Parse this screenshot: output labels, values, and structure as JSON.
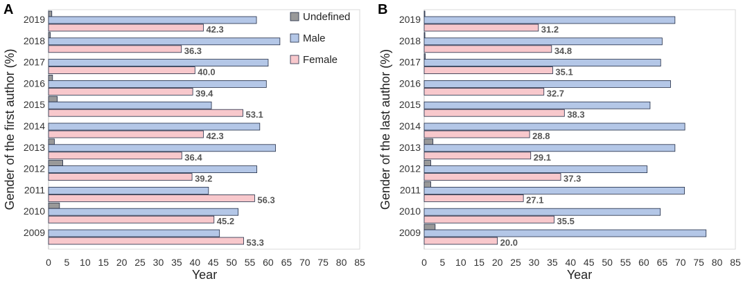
{
  "chart_data": [
    {
      "panel_label": "A",
      "type": "bar",
      "orientation": "horizontal",
      "categories": [
        "2019",
        "2018",
        "2017",
        "2016",
        "2015",
        "2014",
        "2013",
        "2012",
        "2011",
        "2010",
        "2009"
      ],
      "series": [
        {
          "name": "Undefined",
          "color": "#999999",
          "values": [
            0.9,
            0.5,
            0.0,
            1.1,
            2.4,
            0.0,
            1.6,
            3.9,
            0.0,
            3.0,
            0.0
          ]
        },
        {
          "name": "Male",
          "color": "#b4c7e7",
          "values": [
            56.8,
            63.2,
            60.0,
            59.5,
            44.5,
            57.7,
            62.0,
            56.9,
            43.7,
            51.8,
            46.7
          ]
        },
        {
          "name": "Female",
          "color": "#f8c8cc",
          "values": [
            42.3,
            36.3,
            40.0,
            39.4,
            53.1,
            42.3,
            36.4,
            39.2,
            56.3,
            45.2,
            53.3
          ]
        }
      ],
      "data_labels": [
        "42.3",
        "36.3",
        "40.0",
        "39.4",
        "53.1",
        "42.3",
        "36.4",
        "39.2",
        "56.3",
        "45.2",
        "53.3"
      ],
      "title": "",
      "xlabel": "Year",
      "ylabel": "Gender of the first author (%)",
      "xlim": [
        0,
        85
      ],
      "xticks": [
        "0",
        "5",
        "10",
        "15",
        "20",
        "25",
        "30",
        "35",
        "40",
        "45",
        "50",
        "55",
        "60",
        "65",
        "70",
        "75",
        "80",
        "85"
      ],
      "legend": {
        "position": "top-right",
        "entries": [
          "Undefined",
          "Male",
          "Female"
        ]
      }
    },
    {
      "panel_label": "B",
      "type": "bar",
      "orientation": "horizontal",
      "categories": [
        "2019",
        "2018",
        "2017",
        "2016",
        "2015",
        "2014",
        "2013",
        "2012",
        "2011",
        "2010",
        "2009"
      ],
      "series": [
        {
          "name": "Undefined",
          "color": "#999999",
          "values": [
            0.2,
            0.2,
            0.3,
            0.0,
            0.0,
            0.0,
            2.4,
            1.8,
            1.8,
            0.0,
            3.0
          ]
        },
        {
          "name": "Male",
          "color": "#b4c7e7",
          "values": [
            68.5,
            65.0,
            64.6,
            67.3,
            61.7,
            71.2,
            68.5,
            60.9,
            71.1,
            64.5,
            77.0
          ]
        },
        {
          "name": "Female",
          "color": "#f8c8cc",
          "values": [
            31.2,
            34.8,
            35.1,
            32.7,
            38.3,
            28.8,
            29.1,
            37.3,
            27.1,
            35.5,
            20.0
          ]
        }
      ],
      "data_labels": [
        "31.2",
        "34.8",
        "35.1",
        "32.7",
        "38.3",
        "28.8",
        "29.1",
        "37.3",
        "27.1",
        "35.5",
        "20.0"
      ],
      "title": "",
      "xlabel": "Year",
      "ylabel": "Gender of the last author (%)",
      "xlim": [
        0,
        85
      ],
      "xticks": [
        "0",
        "5",
        "10",
        "15",
        "20",
        "25",
        "30",
        "35",
        "40",
        "45",
        "50",
        "55",
        "60",
        "65",
        "70",
        "75",
        "80",
        "85"
      ],
      "legend": {
        "position": "none",
        "entries": []
      }
    }
  ]
}
